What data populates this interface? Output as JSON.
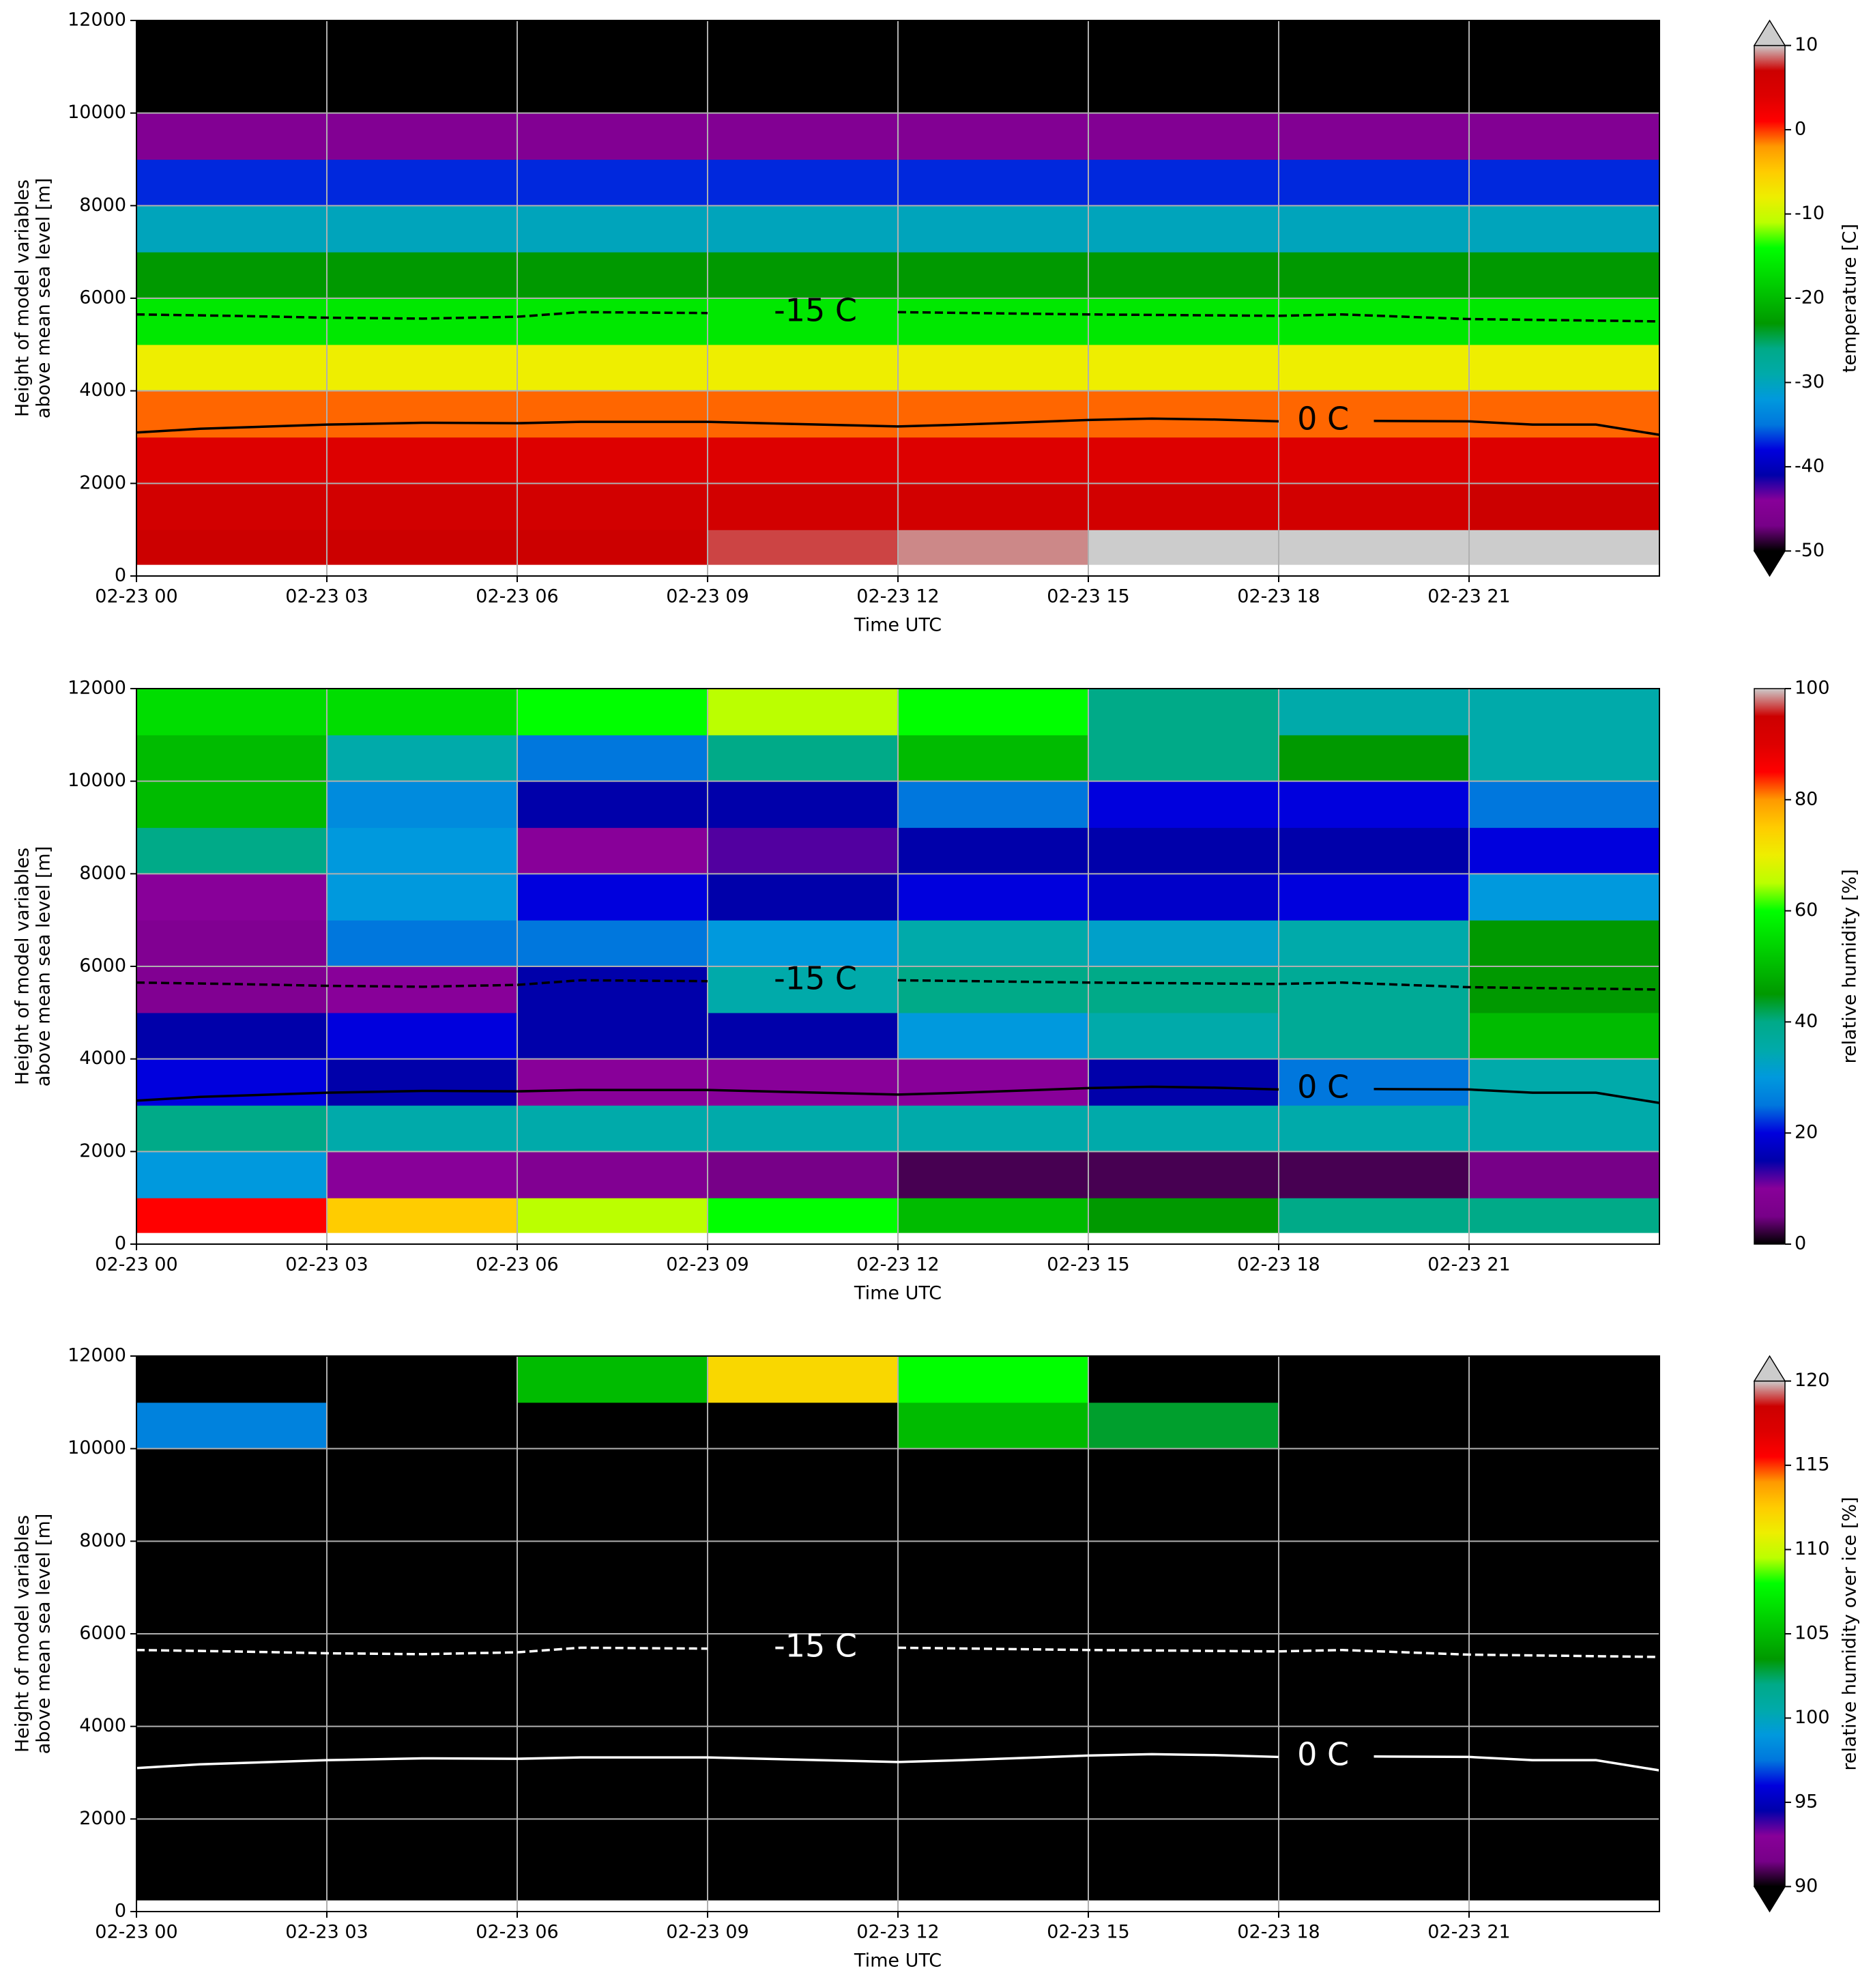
{
  "chart_data": [
    {
      "type": "heatmap",
      "xlabel": "Time UTC",
      "ylabel": [
        "Height of model variables",
        "above mean sea level [m]"
      ],
      "xlim": [
        0,
        24
      ],
      "xticks": [
        {
          "value": 0,
          "label": "02-23 00"
        },
        {
          "value": 3,
          "label": "02-23 03"
        },
        {
          "value": 6,
          "label": "02-23 06"
        },
        {
          "value": 9,
          "label": "02-23 09"
        },
        {
          "value": 12,
          "label": "02-23 12"
        },
        {
          "value": 15,
          "label": "02-23 15"
        },
        {
          "value": 18,
          "label": "02-23 18"
        },
        {
          "value": 21,
          "label": "02-23 21"
        }
      ],
      "ylim": [
        0,
        12000
      ],
      "yticks": [
        0,
        2000,
        4000,
        6000,
        8000,
        10000,
        12000
      ],
      "grid": true,
      "colormap": "nipy_spectral",
      "heatmap": {
        "x": [
          0,
          3,
          6,
          9,
          12,
          15,
          18,
          21,
          24
        ],
        "y": [
          250,
          1000,
          2000,
          3000,
          4000,
          5000,
          6000,
          7000,
          8000,
          9000,
          10000,
          11000,
          12000
        ],
        "z": [
          [
            7,
            7,
            7,
            8,
            9,
            10,
            11,
            12
          ],
          [
            6,
            6,
            6,
            6,
            6,
            6,
            6,
            7
          ],
          [
            4,
            4,
            4,
            4,
            4,
            4,
            4,
            4
          ],
          [
            -1,
            -1,
            -1,
            -1,
            -1,
            -1,
            -1,
            -1
          ],
          [
            -8,
            -8,
            -8,
            -8,
            -8,
            -8,
            -8,
            -8
          ],
          [
            -16,
            -16,
            -16,
            -16,
            -16,
            -16,
            -16,
            -16
          ],
          [
            -23,
            -23,
            -23,
            -23,
            -23,
            -23,
            -23,
            -23
          ],
          [
            -30,
            -30,
            -30,
            -30,
            -30,
            -30,
            -30,
            -30
          ],
          [
            -37,
            -37,
            -37,
            -37,
            -37,
            -37,
            -37,
            -37
          ],
          [
            -45,
            -45,
            -45,
            -45,
            -45,
            -45,
            -45,
            -45
          ],
          [
            -55,
            -55,
            -55,
            -55,
            -55,
            -55,
            -55,
            -55
          ],
          [
            -55,
            -55,
            -55,
            -55,
            -55,
            -55,
            -55,
            -55
          ]
        ]
      },
      "colorbar": {
        "label": "temperature [C]",
        "lim": [
          -50,
          10
        ],
        "ticks": [
          -50,
          -40,
          -30,
          -20,
          -10,
          0,
          10
        ],
        "extend": "both"
      },
      "contour_color": "#000000",
      "contours": [
        {
          "label": "-15 C",
          "style": "dashed",
          "x": [
            0,
            1.5,
            3,
            4.5,
            6,
            7,
            9,
            10.7,
            12,
            15,
            18,
            19,
            21,
            24
          ],
          "y": [
            5650,
            5620,
            5580,
            5560,
            5600,
            5700,
            5680,
            null,
            5700,
            5650,
            5620,
            5650,
            5550,
            5500
          ]
        },
        {
          "label": "0 C",
          "style": "solid",
          "x": [
            0,
            1,
            3,
            4.5,
            6,
            7,
            9,
            12,
            13,
            15,
            16,
            17,
            18,
            18.7,
            19.5,
            21,
            22,
            23,
            24
          ],
          "y": [
            3100,
            3180,
            3270,
            3310,
            3300,
            3330,
            3330,
            3230,
            3270,
            3370,
            3400,
            3380,
            3340,
            null,
            3350,
            3340,
            3270,
            3270,
            3050
          ]
        }
      ]
    },
    {
      "type": "heatmap",
      "xlabel": "Time UTC",
      "ylabel": [
        "Height of model variables",
        "above mean sea level [m]"
      ],
      "xlim": [
        0,
        24
      ],
      "xticks": [
        {
          "value": 0,
          "label": "02-23 00"
        },
        {
          "value": 3,
          "label": "02-23 03"
        },
        {
          "value": 6,
          "label": "02-23 06"
        },
        {
          "value": 9,
          "label": "02-23 09"
        },
        {
          "value": 12,
          "label": "02-23 12"
        },
        {
          "value": 15,
          "label": "02-23 15"
        },
        {
          "value": 18,
          "label": "02-23 18"
        },
        {
          "value": 21,
          "label": "02-23 21"
        }
      ],
      "ylim": [
        0,
        12000
      ],
      "yticks": [
        0,
        2000,
        4000,
        6000,
        8000,
        10000,
        12000
      ],
      "grid": true,
      "colormap": "nipy_spectral",
      "heatmap": {
        "x": [
          0,
          3,
          6,
          9,
          12,
          15,
          18,
          21,
          24
        ],
        "y": [
          250,
          1000,
          2000,
          3000,
          4000,
          5000,
          6000,
          7000,
          8000,
          9000,
          10000,
          11000,
          12000
        ],
        "z": [
          [
            85,
            75,
            65,
            60,
            50,
            45,
            40,
            40
          ],
          [
            30,
            10,
            8,
            5,
            3,
            3,
            3,
            5
          ],
          [
            40,
            35,
            35,
            35,
            35,
            35,
            35,
            35
          ],
          [
            20,
            15,
            10,
            10,
            10,
            15,
            25,
            35
          ],
          [
            15,
            20,
            15,
            15,
            30,
            35,
            38,
            50
          ],
          [
            8,
            10,
            15,
            35,
            40,
            40,
            38,
            45
          ],
          [
            8,
            25,
            25,
            30,
            35,
            32,
            35,
            45
          ],
          [
            10,
            30,
            20,
            15,
            20,
            18,
            20,
            30
          ],
          [
            40,
            30,
            10,
            12,
            15,
            15,
            15,
            20
          ],
          [
            50,
            28,
            15,
            15,
            25,
            20,
            20,
            25
          ],
          [
            50,
            35,
            25,
            40,
            50,
            40,
            45,
            35
          ],
          [
            55,
            55,
            60,
            65,
            60,
            40,
            35,
            35
          ]
        ]
      },
      "colorbar": {
        "label": "relative humidity [%]",
        "lim": [
          0,
          100
        ],
        "ticks": [
          0,
          20,
          40,
          60,
          80,
          100
        ],
        "extend": "neither"
      },
      "contour_color": "#000000",
      "contours": [
        {
          "label": "-15 C",
          "style": "dashed",
          "x": [
            0,
            1.5,
            3,
            4.5,
            6,
            7,
            9,
            10.7,
            12,
            15,
            18,
            19,
            21,
            24
          ],
          "y": [
            5650,
            5620,
            5580,
            5560,
            5600,
            5700,
            5680,
            null,
            5700,
            5650,
            5620,
            5650,
            5550,
            5500
          ]
        },
        {
          "label": "0 C",
          "style": "solid",
          "x": [
            0,
            1,
            3,
            4.5,
            6,
            7,
            9,
            12,
            13,
            15,
            16,
            17,
            18,
            18.7,
            19.5,
            21,
            22,
            23,
            24
          ],
          "y": [
            3100,
            3180,
            3270,
            3310,
            3300,
            3330,
            3330,
            3230,
            3270,
            3370,
            3400,
            3380,
            3340,
            null,
            3350,
            3340,
            3270,
            3270,
            3050
          ]
        }
      ]
    },
    {
      "type": "heatmap",
      "xlabel": "Time UTC",
      "ylabel": [
        "Height of model variables",
        "above mean sea level [m]"
      ],
      "xlim": [
        0,
        24
      ],
      "xticks": [
        {
          "value": 0,
          "label": "02-23 00"
        },
        {
          "value": 3,
          "label": "02-23 03"
        },
        {
          "value": 6,
          "label": "02-23 06"
        },
        {
          "value": 9,
          "label": "02-23 09"
        },
        {
          "value": 12,
          "label": "02-23 12"
        },
        {
          "value": 15,
          "label": "02-23 15"
        },
        {
          "value": 18,
          "label": "02-23 18"
        },
        {
          "value": 21,
          "label": "02-23 21"
        }
      ],
      "ylim": [
        0,
        12000
      ],
      "yticks": [
        0,
        2000,
        4000,
        6000,
        8000,
        10000,
        12000
      ],
      "grid": true,
      "colormap": "nipy_spectral",
      "heatmap": {
        "x": [
          0,
          3,
          6,
          9,
          12,
          15,
          18,
          21,
          24
        ],
        "y": [
          250,
          1000,
          2000,
          3000,
          4000,
          5000,
          6000,
          7000,
          8000,
          9000,
          10000,
          11000,
          12000
        ],
        "z": [
          [
            80,
            80,
            80,
            80,
            80,
            80,
            80,
            80
          ],
          [
            80,
            80,
            80,
            80,
            80,
            80,
            80,
            80
          ],
          [
            80,
            80,
            80,
            80,
            80,
            80,
            80,
            80
          ],
          [
            80,
            80,
            80,
            80,
            80,
            80,
            80,
            80
          ],
          [
            80,
            80,
            80,
            80,
            80,
            80,
            80,
            80
          ],
          [
            80,
            80,
            80,
            80,
            80,
            80,
            80,
            80
          ],
          [
            80,
            80,
            80,
            80,
            80,
            80,
            80,
            80
          ],
          [
            80,
            80,
            80,
            80,
            80,
            80,
            80,
            80
          ],
          [
            80,
            80,
            80,
            80,
            80,
            80,
            80,
            80
          ],
          [
            80,
            80,
            80,
            80,
            80,
            80,
            80,
            80
          ],
          [
            98,
            80,
            80,
            80,
            105,
            103,
            80,
            80
          ],
          [
            80,
            90,
            105,
            112,
            108,
            80,
            80,
            80
          ]
        ]
      },
      "colorbar": {
        "label": "relative humidity over ice [%]",
        "lim": [
          90,
          120
        ],
        "ticks": [
          90,
          95,
          100,
          105,
          110,
          115,
          120
        ],
        "extend": "both"
      },
      "contour_color": "#ffffff",
      "contours": [
        {
          "label": "-15 C",
          "style": "dashed",
          "x": [
            0,
            1.5,
            3,
            4.5,
            6,
            7,
            9,
            10.7,
            12,
            15,
            18,
            19,
            21,
            24
          ],
          "y": [
            5650,
            5620,
            5580,
            5560,
            5600,
            5700,
            5680,
            null,
            5700,
            5650,
            5620,
            5650,
            5550,
            5500
          ]
        },
        {
          "label": "0 C",
          "style": "solid",
          "x": [
            0,
            1,
            3,
            4.5,
            6,
            7,
            9,
            12,
            13,
            15,
            16,
            17,
            18,
            18.7,
            19.5,
            21,
            22,
            23,
            24
          ],
          "y": [
            3100,
            3180,
            3270,
            3310,
            3300,
            3330,
            3330,
            3230,
            3270,
            3370,
            3400,
            3380,
            3340,
            null,
            3350,
            3340,
            3270,
            3270,
            3050
          ]
        }
      ]
    }
  ]
}
